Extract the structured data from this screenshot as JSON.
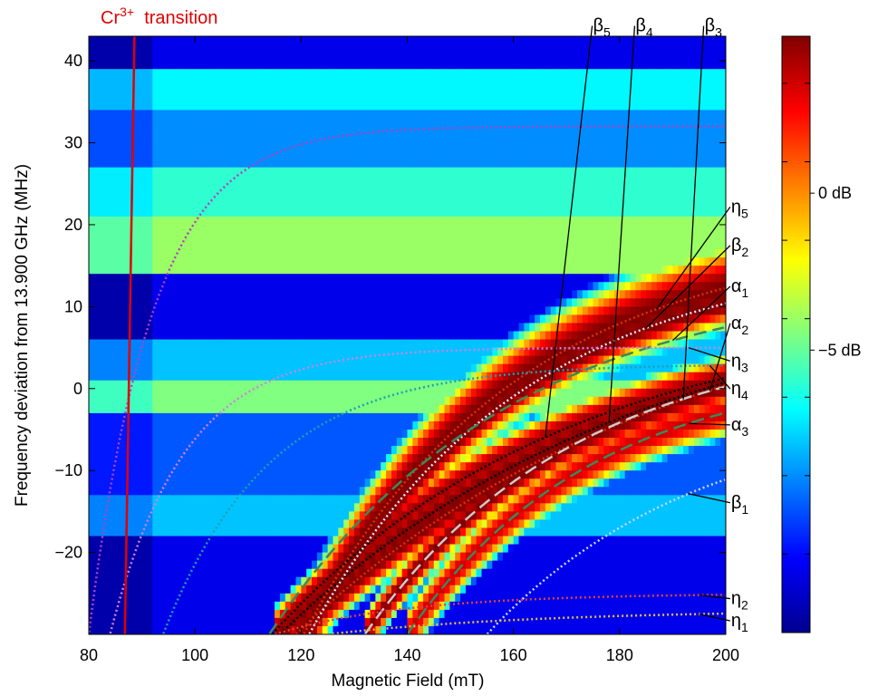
{
  "chart_data": {
    "type": "heatmap",
    "title": "",
    "xlabel": "Magnetic Field (mT)",
    "ylabel": "Frequency deviation from 13.900 GHz (MHz)",
    "xlim": [
      80,
      200
    ],
    "ylim": [
      -30,
      43
    ],
    "xticks": [
      "80",
      "100",
      "120",
      "140",
      "160",
      "180",
      "200"
    ],
    "yticks": [
      "40",
      "30",
      "20",
      "10",
      "0",
      "−10",
      "−20"
    ],
    "colorbar": {
      "range_db": [
        -14,
        5
      ],
      "ticks": [
        "0 dB",
        "−5 dB"
      ],
      "colormap": "jet"
    },
    "background_bands_db": [
      {
        "y": [
          39,
          43
        ],
        "v": -12
      },
      {
        "y": [
          34,
          39
        ],
        "v": -7
      },
      {
        "y": [
          27,
          34
        ],
        "v": -9
      },
      {
        "y": [
          21,
          27
        ],
        "v": -6
      },
      {
        "y": [
          14,
          21
        ],
        "v": -4
      },
      {
        "y": [
          6,
          14
        ],
        "v": -12
      },
      {
        "y": [
          1,
          6
        ],
        "v": -8
      },
      {
        "y": [
          -3,
          1
        ],
        "v": -4.5
      },
      {
        "y": [
          -13,
          -3
        ],
        "v": -10
      },
      {
        "y": [
          -18,
          -13
        ],
        "v": -8
      },
      {
        "y": [
          -30,
          -18
        ],
        "v": -12
      }
    ],
    "cr_line": {
      "label": "Cr",
      "sup": "3+",
      "label2": "transition",
      "color": "#e00000",
      "x": [
        86.8,
        88.6
      ],
      "y": [
        -30,
        43
      ]
    },
    "series": [
      {
        "id": "beta5",
        "label": "β",
        "sub": "5",
        "B0": 114.5,
        "A": 40,
        "t": 56,
        "style": "dotted",
        "color": "#000000",
        "intensity": 4.5,
        "width": 6,
        "label_xy": [
          175,
          43.6
        ],
        "anchor_x": 166
      },
      {
        "id": "beta4",
        "label": "β",
        "sub": "4",
        "B0": 116.0,
        "A": 44,
        "t": 70,
        "style": "dotted",
        "color": "#000000",
        "intensity": 5.0,
        "width": 6,
        "label_xy": [
          183,
          43.6
        ],
        "anchor_x": 178
      },
      {
        "id": "beta3",
        "label": "β",
        "sub": "3",
        "B0": 119.0,
        "A": 45,
        "t": 72,
        "style": "dotted",
        "color": "#e03000",
        "intensity": 5.0,
        "width": 6,
        "label_xy": [
          196,
          43.6
        ],
        "anchor_x": 192
      },
      {
        "id": "eta5",
        "label": "η",
        "sub": "5",
        "B0": 120.5,
        "A": 49,
        "t": 40,
        "style": "dotted",
        "color": "#e03000",
        "intensity": 5.0,
        "width": 14,
        "label_xy": [
          201,
          21.5
        ],
        "anchor_x": 187
      },
      {
        "id": "beta2",
        "label": "β",
        "sub": "2",
        "B0": 121.5,
        "A": 47,
        "t": 40,
        "style": "dotted",
        "color": "#e8e8ff",
        "intensity": 5.0,
        "width": 6,
        "label_xy": [
          201,
          16.8
        ],
        "anchor_x": 185
      },
      {
        "id": "alpha1",
        "label": "α",
        "sub": "1",
        "B0": 114,
        "A": 44,
        "t": 45,
        "style": "dashed",
        "color": "#3a8a5a",
        "intensity": -999,
        "width": 0,
        "label_xy": [
          201,
          11.8
        ],
        "anchor_x": 190
      },
      {
        "id": "alpha2",
        "label": "α",
        "sub": "2",
        "B0": 132,
        "A": 37,
        "t": 40,
        "style": "dashed",
        "color": "#cccccc",
        "intensity": 5.0,
        "width": 5,
        "label_xy": [
          201,
          7.3
        ],
        "anchor_x": 197
      },
      {
        "id": "eta3",
        "label": "η",
        "sub": "3",
        "B0": 84,
        "A": 35,
        "t": 14,
        "style": "dotted",
        "color": "#d080e0",
        "intensity": -999,
        "width": 0,
        "label_xy": [
          201,
          2.7
        ],
        "anchor_x": 193
      },
      {
        "id": "eta4",
        "label": "η",
        "sub": "4",
        "B0": 94,
        "A": 33,
        "t": 20,
        "style": "dotted",
        "color": "#20a0b0",
        "intensity": -999,
        "width": 0,
        "label_xy": [
          201,
          -0.7
        ],
        "anchor_x": 197
      },
      {
        "id": "alpha3",
        "label": "α",
        "sub": "3",
        "B0": 140,
        "A": 33,
        "t": 35,
        "style": "dashed",
        "color": "#3a8a5a",
        "intensity": 3.5,
        "width": 7,
        "label_xy": [
          201,
          -5.1
        ],
        "anchor_x": 193
      },
      {
        "id": "beta1",
        "label": "β",
        "sub": "1",
        "B0": 155,
        "A": 28,
        "t": 40,
        "style": "dotted",
        "color": "#c8d8ff",
        "intensity": -999,
        "width": 0,
        "label_xy": [
          201,
          -14.6
        ],
        "anchor_x": 193
      },
      {
        "id": "eta5b",
        "label": "",
        "sub": "",
        "B0": 80,
        "A": 62,
        "t": 12,
        "style": "dotted",
        "color": "#b040c0",
        "intensity": -999,
        "width": 0,
        "label_xy": null,
        "anchor_x": 0
      },
      {
        "id": "eta2",
        "label": "η",
        "sub": "2",
        "B0": 115,
        "A": 5,
        "t": 25,
        "style": "dotted",
        "color": "#e04040",
        "intensity": -999,
        "width": 0,
        "label_xy": [
          201,
          -26.3
        ],
        "anchor_x": 195
      },
      {
        "id": "eta1",
        "label": "η",
        "sub": "1",
        "B0": 125,
        "A": 3,
        "t": 40,
        "style": "dotted",
        "color": "#e0c040",
        "intensity": -999,
        "width": 0,
        "label_xy": [
          201,
          -29.0
        ],
        "anchor_x": 195
      }
    ]
  }
}
